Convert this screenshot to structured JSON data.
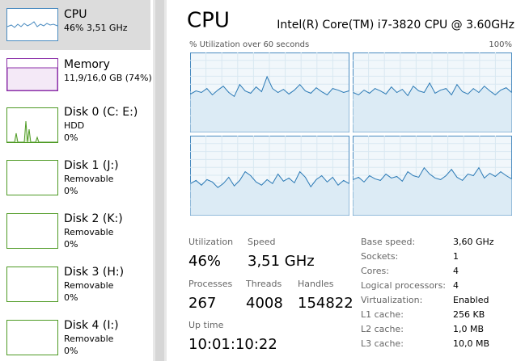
{
  "sidebar": {
    "items": [
      {
        "name": "CPU",
        "detail": "46% 3,51 GHz"
      },
      {
        "name": "Memory",
        "detail": "11,9/16,0 GB (74%)"
      },
      {
        "name": "Disk 0 (C: E:)",
        "detail": "HDD",
        "usage": "0%"
      },
      {
        "name": "Disk 1 (J:)",
        "detail": "Removable",
        "usage": "0%"
      },
      {
        "name": "Disk 2 (K:)",
        "detail": "Removable",
        "usage": "0%"
      },
      {
        "name": "Disk 3 (H:)",
        "detail": "Removable",
        "usage": "0%"
      },
      {
        "name": "Disk 4 (I:)",
        "detail": "Removable",
        "usage": "0%"
      }
    ]
  },
  "header": {
    "title": "CPU",
    "processor": "Intel(R) Core(TM) i7-3820 CPU @ 3.60GHz"
  },
  "graph": {
    "label": "% Utilization over 60 seconds",
    "max_label": "100%",
    "ylim": [
      0,
      100
    ],
    "cores": [
      {
        "values": [
          48,
          52,
          50,
          55,
          47,
          53,
          58,
          50,
          45,
          60,
          52,
          49,
          57,
          51,
          70,
          55,
          50,
          54,
          48,
          53,
          60,
          52,
          49,
          56,
          51,
          47,
          55,
          53,
          50,
          52
        ]
      },
      {
        "values": [
          50,
          47,
          53,
          49,
          55,
          52,
          48,
          57,
          50,
          54,
          46,
          58,
          52,
          50,
          62,
          49,
          53,
          55,
          47,
          60,
          51,
          48,
          55,
          50,
          58,
          52,
          47,
          53,
          56,
          50
        ]
      },
      {
        "values": [
          40,
          44,
          38,
          45,
          42,
          35,
          40,
          48,
          37,
          44,
          55,
          50,
          42,
          38,
          45,
          40,
          52,
          43,
          47,
          41,
          55,
          48,
          36,
          45,
          50,
          42,
          48,
          38,
          44,
          40
        ]
      },
      {
        "values": [
          45,
          48,
          42,
          50,
          46,
          44,
          52,
          47,
          49,
          43,
          55,
          50,
          48,
          60,
          52,
          47,
          45,
          50,
          58,
          48,
          44,
          52,
          50,
          60,
          47,
          53,
          49,
          55,
          50,
          46
        ]
      }
    ]
  },
  "stats": [
    {
      "label": "Utilization",
      "value": "46%"
    },
    {
      "label": "Speed",
      "value": "3,51 GHz"
    },
    {
      "label": "Processes",
      "value": "267"
    },
    {
      "label": "Threads",
      "value": "4008"
    },
    {
      "label": "Handles",
      "value": "154822"
    },
    {
      "label": "Up time",
      "value": "10:01:10:22"
    }
  ],
  "details": [
    [
      "Base speed:",
      "3,60 GHz"
    ],
    [
      "Sockets:",
      "1"
    ],
    [
      "Cores:",
      "4"
    ],
    [
      "Logical processors:",
      "4"
    ],
    [
      "Virtualization:",
      "Enabled"
    ],
    [
      "L1 cache:",
      "256 KB"
    ],
    [
      "L2 cache:",
      "1,0 MB"
    ],
    [
      "L3 cache:",
      "10,0 MB"
    ]
  ]
}
